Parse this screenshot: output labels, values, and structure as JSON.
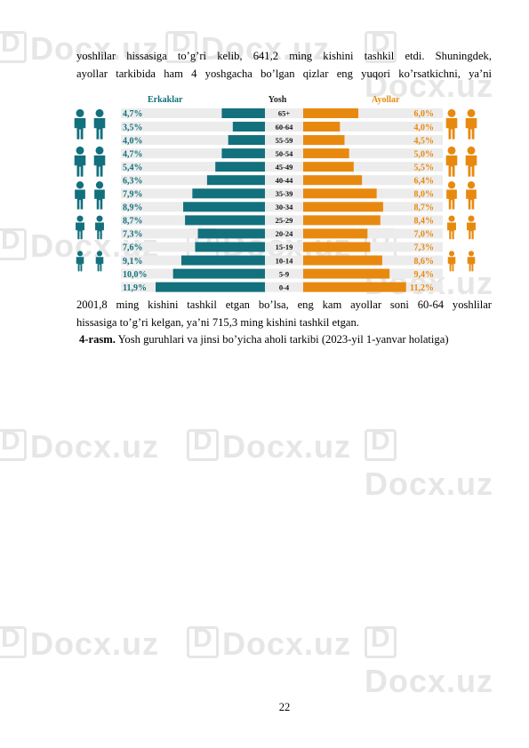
{
  "text": {
    "para1_lines": [
      "yoshlilar hissasiga to’g’ri kelib, 641,2 ming kishini tashkil etdi. Shuningdek,",
      "ayollar tarkibida ham 4 yoshgacha bo’lgan qizlar eng yuqori ko’rsatkichni, ya’ni"
    ],
    "para2_lines": [
      "2001,8 ming kishini tashkil etgan bo’lsa, eng kam ayollar soni 60-64 yoshlilar",
      "hissasiga to’g’ri kelgan, ya’ni 715,3 ming kishini tashkil etgan."
    ],
    "caption_bold": "4-rasm.",
    "caption_text": " Yosh guruhlari va jinsi bo’yicha aholi tarkibi (2023-yil 1-yanvar holatiga)",
    "page_number": "22"
  },
  "watermark": "Docx.uz",
  "chart_data": {
    "type": "bar",
    "orientation": "population-pyramid",
    "left_header": "Erkaklar",
    "center_header": "Yosh",
    "right_header": "Ayollar",
    "categories": [
      "65+",
      "60-64",
      "55-59",
      "50-54",
      "45-49",
      "40-44",
      "35-39",
      "30-34",
      "25-29",
      "20-24",
      "15-19",
      "10-14",
      "5-9",
      "0-4"
    ],
    "series": [
      {
        "name": "Erkaklar",
        "values": [
          4.7,
          3.5,
          4.0,
          4.7,
          5.4,
          6.3,
          7.9,
          8.9,
          8.7,
          7.3,
          7.6,
          9.1,
          10.0,
          11.9
        ],
        "labels": [
          "4,7%",
          "3,5%",
          "4,0%",
          "4,7%",
          "5,4%",
          "6,3%",
          "7,9%",
          "8,9%",
          "8,7%",
          "7,3%",
          "7,6%",
          "9,1%",
          "10,0%",
          "11,9%"
        ],
        "color": "#13707d"
      },
      {
        "name": "Ayollar",
        "values": [
          6.0,
          4.0,
          4.5,
          5.0,
          5.5,
          6.4,
          8.0,
          8.7,
          8.4,
          7.0,
          7.3,
          8.6,
          9.4,
          11.2
        ],
        "labels": [
          "6,0%",
          "4,0%",
          "4,5%",
          "5,0%",
          "5,5%",
          "6,4%",
          "8,0%",
          "8,7%",
          "8,4%",
          "7,0%",
          "7,3%",
          "8,6%",
          "9,4%",
          "11,2%"
        ],
        "color": "#e8890f"
      }
    ],
    "header_colors": {
      "left": "#13707d",
      "center": "#222222",
      "right": "#e8890f"
    },
    "row_background": "#ececec",
    "icons": [
      "elderly-couple-icon",
      "adult-couple-icon",
      "teen-couple-icon",
      "child-couple-icon",
      "infant-icon"
    ]
  }
}
